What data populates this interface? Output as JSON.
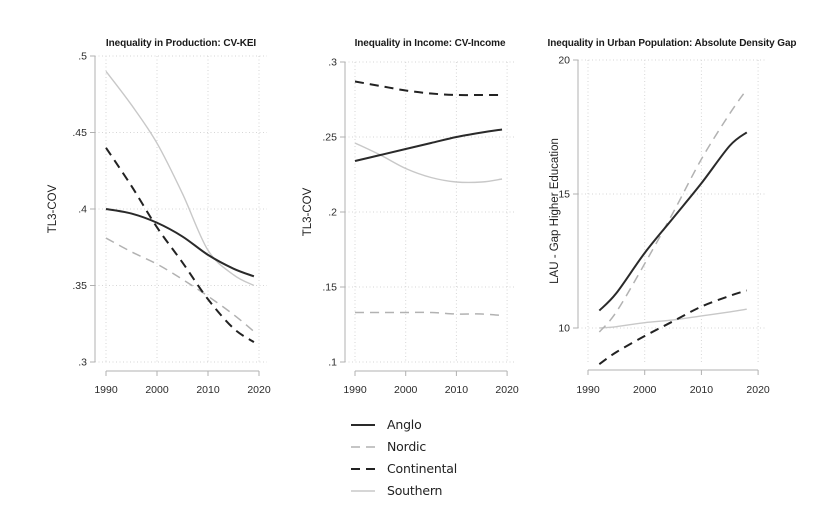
{
  "figure": {
    "background": "#ffffff"
  },
  "axis_style": {
    "line_color": "#b0b0b0",
    "grid_color": "#d6d6d6",
    "tick_text_color": "#2b2b2b",
    "title_color": "#1a1a1a"
  },
  "series_styles": {
    "anglo": {
      "color": "#2a2a2a",
      "dash": "",
      "width": 2
    },
    "nordic": {
      "color": "#b2b2b2",
      "dash": "9 6",
      "width": 1.5
    },
    "continental": {
      "color": "#222222",
      "dash": "9 6",
      "width": 2
    },
    "southern": {
      "color": "#c8c8c8",
      "dash": "",
      "width": 1.4
    }
  },
  "legend": {
    "items": [
      {
        "label": "Anglo",
        "series": "anglo"
      },
      {
        "label": "Nordic",
        "series": "nordic"
      },
      {
        "label": "Continental",
        "series": "continental"
      },
      {
        "label": "Southern",
        "series": "southern"
      }
    ]
  },
  "chart_data": [
    {
      "type": "line",
      "title": "Inequality in Production: CV-KEI",
      "ylabel": "TL3-COV",
      "xlabel": "",
      "ylim": [
        0.3,
        0.5
      ],
      "grid": true,
      "xticks": [
        {
          "v": 1990,
          "label": "1990"
        },
        {
          "v": 2000,
          "label": "2000"
        },
        {
          "v": 2010,
          "label": "2010"
        },
        {
          "v": 2020,
          "label": "2020"
        }
      ],
      "yticks": [
        {
          "v": 0.5,
          "label": ".5"
        },
        {
          "v": 0.45,
          "label": ".45"
        },
        {
          "v": 0.4,
          "label": ".4"
        },
        {
          "v": 0.35,
          "label": ".35"
        },
        {
          "v": 0.3,
          "label": ".3"
        }
      ],
      "series": [
        {
          "name": "Southern",
          "key": "southern",
          "x": [
            1990,
            1995,
            2000,
            2005,
            2010,
            2015,
            2019
          ],
          "y": [
            0.49,
            0.468,
            0.443,
            0.41,
            0.373,
            0.357,
            0.35
          ]
        },
        {
          "name": "Nordic",
          "key": "nordic",
          "x": [
            1990,
            1995,
            2000,
            2005,
            2010,
            2015,
            2019
          ],
          "y": [
            0.381,
            0.372,
            0.364,
            0.354,
            0.343,
            0.331,
            0.32
          ]
        },
        {
          "name": "Continental",
          "key": "continental",
          "x": [
            1990,
            1995,
            2000,
            2005,
            2010,
            2015,
            2019
          ],
          "y": [
            0.44,
            0.415,
            0.388,
            0.365,
            0.341,
            0.322,
            0.313
          ]
        },
        {
          "name": "Anglo",
          "key": "anglo",
          "x": [
            1990,
            1995,
            2000,
            2005,
            2010,
            2015,
            2019
          ],
          "y": [
            0.4,
            0.397,
            0.391,
            0.382,
            0.37,
            0.361,
            0.356
          ]
        }
      ]
    },
    {
      "type": "line",
      "title": "Inequality in Income: CV-Income",
      "ylabel": "TL3-COV",
      "xlabel": "",
      "ylim": [
        0.1,
        0.3
      ],
      "grid": true,
      "xticks": [
        {
          "v": 1990,
          "label": "1990"
        },
        {
          "v": 2000,
          "label": "2000"
        },
        {
          "v": 2010,
          "label": "2010"
        },
        {
          "v": 2020,
          "label": "2020"
        }
      ],
      "yticks": [
        {
          "v": 0.3,
          "label": ".3"
        },
        {
          "v": 0.25,
          "label": ".25"
        },
        {
          "v": 0.2,
          "label": ".2"
        },
        {
          "v": 0.15,
          "label": ".15"
        },
        {
          "v": 0.1,
          "label": ".1"
        }
      ],
      "series": [
        {
          "name": "Southern",
          "key": "southern",
          "x": [
            1990,
            1995,
            2000,
            2005,
            2010,
            2015,
            2019
          ],
          "y": [
            0.246,
            0.238,
            0.229,
            0.223,
            0.22,
            0.22,
            0.222
          ]
        },
        {
          "name": "Nordic",
          "key": "nordic",
          "x": [
            1990,
            1995,
            2000,
            2005,
            2010,
            2015,
            2019
          ],
          "y": [
            0.133,
            0.133,
            0.133,
            0.133,
            0.132,
            0.132,
            0.131
          ]
        },
        {
          "name": "Continental",
          "key": "continental",
          "x": [
            1990,
            1995,
            2000,
            2005,
            2010,
            2015,
            2019
          ],
          "y": [
            0.287,
            0.284,
            0.281,
            0.279,
            0.278,
            0.278,
            0.278
          ]
        },
        {
          "name": "Anglo",
          "key": "anglo",
          "x": [
            1990,
            1995,
            2000,
            2005,
            2010,
            2015,
            2019
          ],
          "y": [
            0.234,
            0.238,
            0.242,
            0.246,
            0.25,
            0.253,
            0.255
          ]
        }
      ]
    },
    {
      "type": "line",
      "title": "Inequality in Urban Population: Absolute Density Gap",
      "ylabel": "LAU - Gap Higher Education",
      "xlabel": "",
      "ylim": [
        10,
        20
      ],
      "grid": true,
      "xticks": [
        {
          "v": 1990,
          "label": "1990"
        },
        {
          "v": 2000,
          "label": "2000"
        },
        {
          "v": 2010,
          "label": "2010"
        },
        {
          "v": 2020,
          "label": "2020"
        }
      ],
      "yticks": [
        {
          "v": 20,
          "label": "20"
        },
        {
          "v": 15,
          "label": "15"
        },
        {
          "v": 10,
          "label": "10"
        }
      ],
      "series": [
        {
          "name": "Southern",
          "key": "southern",
          "x": [
            1992,
            1995,
            2000,
            2005,
            2010,
            2015,
            2018
          ],
          "y": [
            10.0,
            10.05,
            10.2,
            10.3,
            10.45,
            10.6,
            10.7
          ]
        },
        {
          "name": "Nordic",
          "key": "nordic",
          "x": [
            1992,
            1995,
            2000,
            2005,
            2010,
            2015,
            2018
          ],
          "y": [
            9.85,
            10.6,
            12.4,
            14.3,
            16.3,
            18.0,
            18.9
          ]
        },
        {
          "name": "Continental",
          "key": "continental",
          "x": [
            1992,
            1995,
            2000,
            2005,
            2010,
            2015,
            2018
          ],
          "y": [
            8.65,
            9.1,
            9.7,
            10.25,
            10.8,
            11.2,
            11.4
          ]
        },
        {
          "name": "Anglo",
          "key": "anglo",
          "x": [
            1992,
            1995,
            2000,
            2005,
            2010,
            2015,
            2018
          ],
          "y": [
            10.65,
            11.3,
            12.8,
            14.1,
            15.4,
            16.8,
            17.3
          ]
        }
      ]
    }
  ]
}
